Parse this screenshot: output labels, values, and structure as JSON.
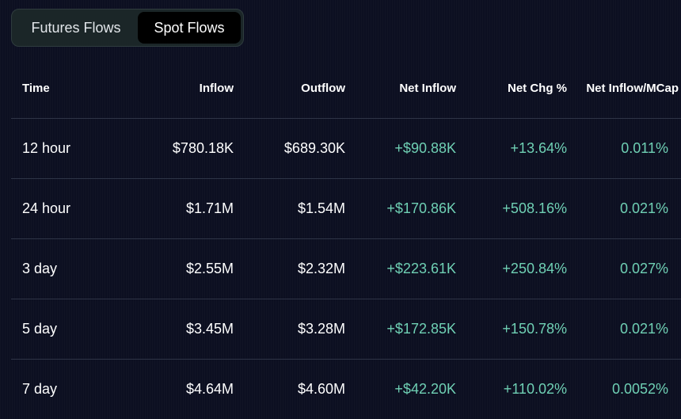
{
  "tabs": [
    {
      "label": "Futures Flows",
      "active": false
    },
    {
      "label": "Spot Flows",
      "active": true
    }
  ],
  "columns": [
    "Time",
    "Inflow",
    "Outflow",
    "Net Inflow",
    "Net Chg %",
    "Net Inflow/MCap"
  ],
  "rows": [
    {
      "time": "12 hour",
      "inflow": "$780.18K",
      "outflow": "$689.30K",
      "net_inflow": "+$90.88K",
      "net_chg": "+13.64%",
      "net_mcap": "0.011%"
    },
    {
      "time": "24 hour",
      "inflow": "$1.71M",
      "outflow": "$1.54M",
      "net_inflow": "+$170.86K",
      "net_chg": "+508.16%",
      "net_mcap": "0.021%"
    },
    {
      "time": "3 day",
      "inflow": "$2.55M",
      "outflow": "$2.32M",
      "net_inflow": "+$223.61K",
      "net_chg": "+250.84%",
      "net_mcap": "0.027%"
    },
    {
      "time": "5 day",
      "inflow": "$3.45M",
      "outflow": "$3.28M",
      "net_inflow": "+$172.85K",
      "net_chg": "+150.78%",
      "net_mcap": "0.021%"
    },
    {
      "time": "7 day",
      "inflow": "$4.64M",
      "outflow": "$4.60M",
      "net_inflow": "+$42.20K",
      "net_chg": "+110.02%",
      "net_mcap": "0.0052%"
    }
  ],
  "colors": {
    "background": "#0c0f21",
    "positive": "#6fd0b4",
    "text": "#ffffff",
    "row_divider": "#2e3446",
    "tab_inactive_bg": "#1b2628",
    "tab_active_bg": "#000000"
  }
}
